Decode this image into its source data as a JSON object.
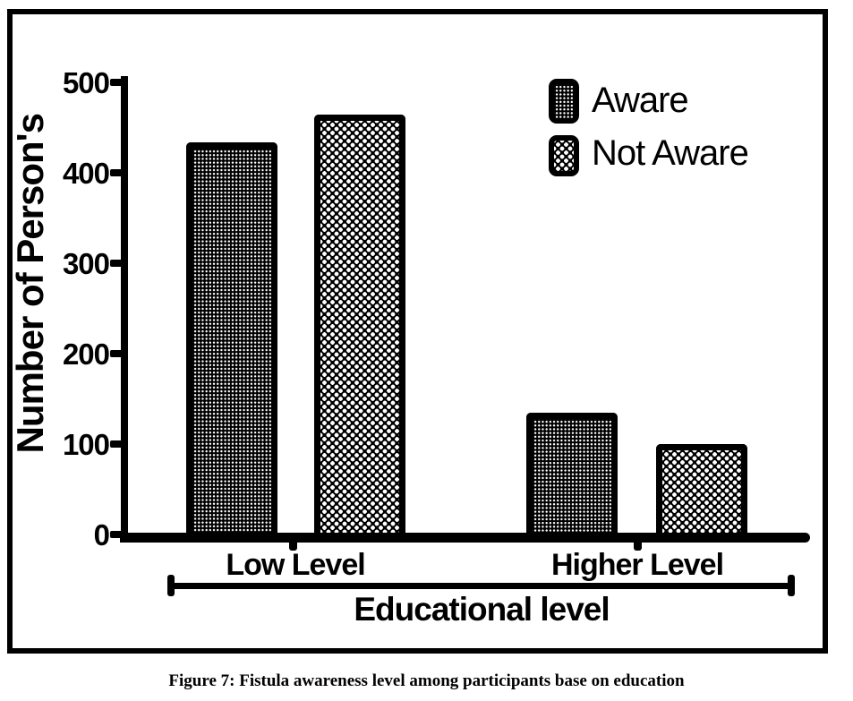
{
  "figure": {
    "caption": "Figure 7: Fistula awareness level among participants base on education"
  },
  "chart_data": {
    "type": "bar",
    "title": "",
    "categories": [
      "Low Level",
      "Higher Level"
    ],
    "series": [
      {
        "name": "Aware",
        "values": [
          430,
          130
        ],
        "pattern": "fine-white-dots-on-black"
      },
      {
        "name": "Not Aware",
        "values": [
          460,
          95
        ],
        "pattern": "checkerboard-white-on-black"
      }
    ],
    "xlabel": "Educational level",
    "ylabel": "Number of Person's",
    "ylim": [
      0,
      500
    ],
    "yticks": [
      0,
      100,
      200,
      300,
      400,
      500
    ],
    "grid": false,
    "legend_position": "top-right",
    "colors": {
      "foreground": "#000000",
      "background": "#ffffff"
    }
  }
}
